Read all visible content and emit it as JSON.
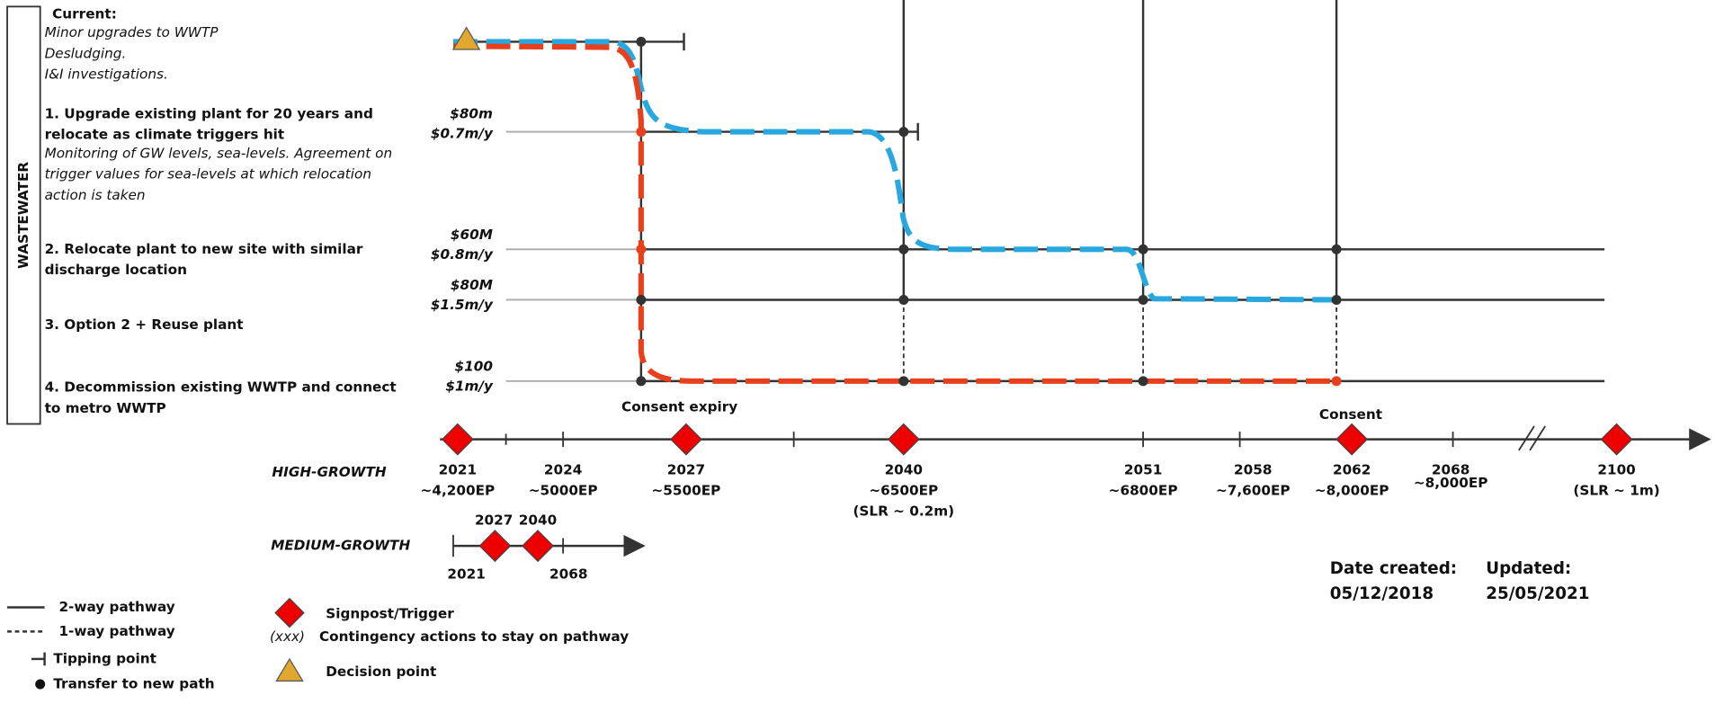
{
  "sidebar": "WASTEWATER",
  "options": [
    {
      "title": [
        "Current:"
      ],
      "desc": [
        "Minor upgrades to WWTP",
        "Desludging.",
        "I&I investigations."
      ]
    },
    {
      "title": [
        "1. Upgrade existing plant for 20 years and",
        "relocate as climate triggers hit"
      ],
      "desc": [
        "Monitoring of GW levels, sea-levels. Agreement on",
        "trigger values for sea-levels at which relocation",
        "action is taken"
      ]
    },
    {
      "title": [
        "2. Relocate plant to new site with similar",
        "discharge location"
      ],
      "desc": []
    },
    {
      "title": [
        "3. Option 2 + Reuse plant"
      ],
      "desc": []
    },
    {
      "title": [
        "4. Decommission existing WWTP and connect",
        "to metro WWTP"
      ],
      "desc": []
    }
  ],
  "costs": [
    [
      "$80m",
      "$0.7m/y"
    ],
    [
      "$60M",
      "$0.8m/y"
    ],
    [
      "$80M",
      "$1.5m/y"
    ],
    [
      "$100",
      "$1m/y"
    ]
  ],
  "annotations": {
    "consent_expiry": "Consent expiry",
    "consent": "Consent"
  },
  "high_growth": {
    "label": "HIGH-GROWTH",
    "points": [
      {
        "year": "2021",
        "ep": "~4,200EP"
      },
      {
        "year": "2024",
        "ep": "~5000EP"
      },
      {
        "year": "2027",
        "ep": "~5500EP"
      },
      {
        "year": "2040",
        "ep": "~6500EP",
        "note": "(SLR ~ 0.2m)"
      },
      {
        "year": "2051",
        "ep": "~6800EP"
      },
      {
        "year": "2058",
        "ep": "~7,600EP"
      },
      {
        "year": "2062",
        "ep": "~8,000EP"
      },
      {
        "year": "2068",
        "ep": "~8,000EP"
      },
      {
        "year": "2100",
        "note": "(SLR ~ 1m)"
      }
    ]
  },
  "medium_growth": {
    "label": "MEDIUM-GROWTH",
    "years": [
      "2027",
      "2040",
      "2021",
      "2068"
    ]
  },
  "legend": {
    "two_way": "2-way pathway",
    "one_way": "1-way pathway",
    "tipping": "Tipping point",
    "transfer": "Transfer to new path",
    "signpost": "Signpost/Trigger",
    "contingency_code": "(xxx)",
    "contingency": "Contingency actions to stay on pathway",
    "decision": "Decision point"
  },
  "dates": {
    "created_label": "Date created:",
    "created": "05/12/2018",
    "updated_label": "Updated:",
    "updated": "25/05/2021"
  }
}
